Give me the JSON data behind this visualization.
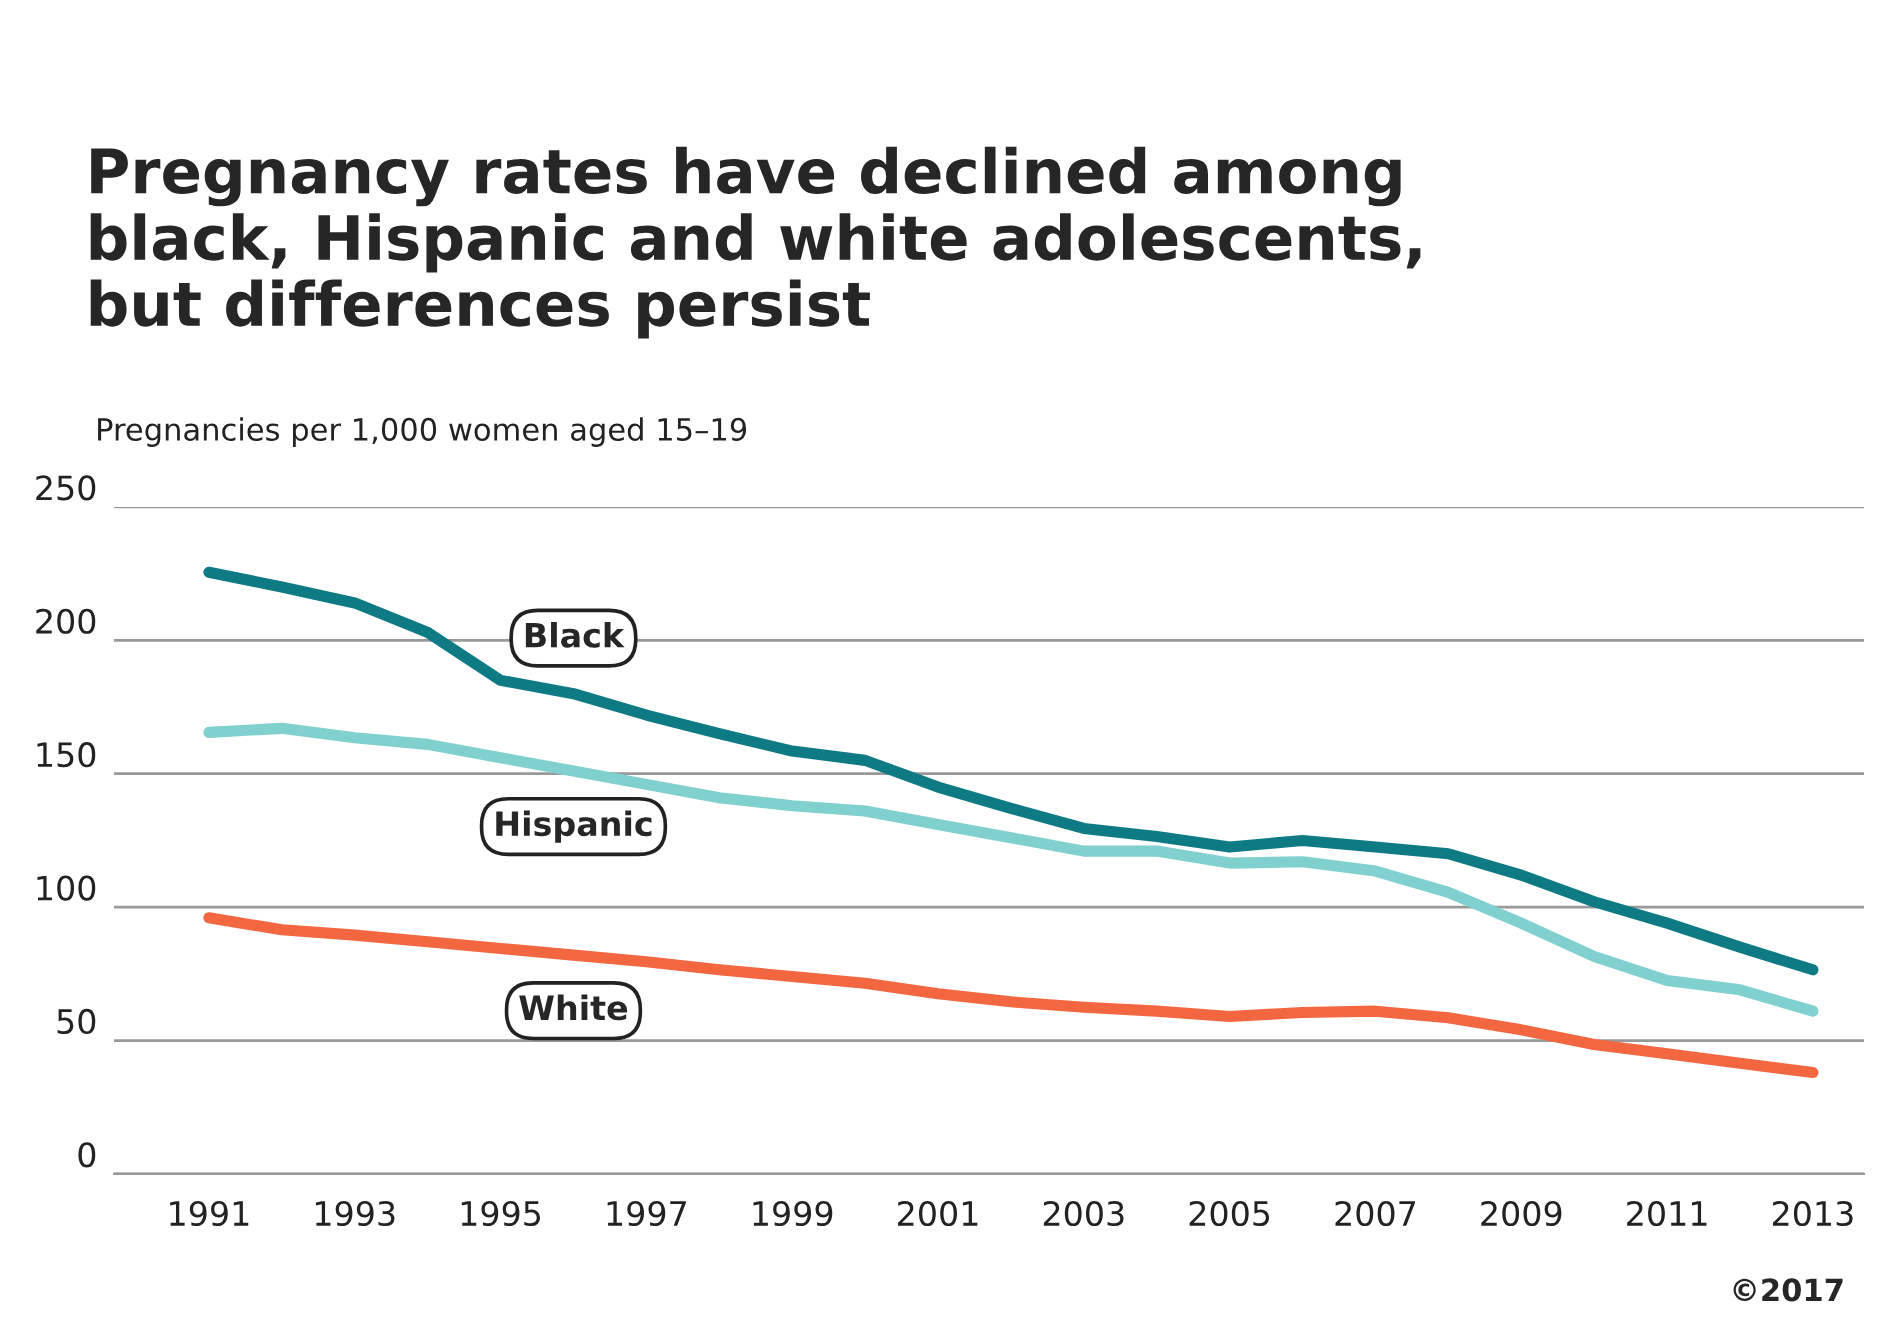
{
  "chart_data": {
    "type": "line",
    "title": "Pregnancy rates have declined among\nblack, Hispanic and white adolescents,\nbut differences persist",
    "ylabel": "Pregnancies per 1,000 women aged 15–19",
    "annotations": [
      "©2017"
    ],
    "x": [
      1991,
      1992,
      1993,
      1994,
      1995,
      1996,
      1997,
      1998,
      1999,
      2000,
      2001,
      2002,
      2003,
      2004,
      2005,
      2006,
      2007,
      2008,
      2009,
      2010,
      2011,
      2012,
      2013
    ],
    "series": [
      {
        "name": "Black",
        "color": "#0e7a83",
        "values": [
          225.5,
          220,
          214,
          203,
          185,
          180,
          172,
          165,
          158.5,
          155,
          145,
          137,
          129.5,
          126.5,
          122.5,
          125,
          122.5,
          120,
          112,
          102,
          94,
          85,
          76.5
        ]
      },
      {
        "name": "Hispanic",
        "color": "#80d0cf",
        "values": [
          165.5,
          167,
          163.5,
          161,
          156,
          151,
          146,
          141,
          138,
          136,
          131,
          126,
          121,
          121,
          116.5,
          117,
          113.5,
          105.5,
          94,
          81.5,
          72.5,
          69,
          61
        ]
      },
      {
        "name": "White",
        "color": "#f26640",
        "values": [
          96,
          91.5,
          89.5,
          87,
          84.5,
          82,
          79.5,
          76.5,
          74,
          71.5,
          67.5,
          64.5,
          62.5,
          61,
          59,
          60.5,
          61,
          58.5,
          54,
          48.5,
          45,
          41.5,
          38
        ]
      }
    ],
    "xlim": [
      1989.7,
      2013.7
    ],
    "ylim": [
      0,
      250
    ],
    "xticks": [
      1991,
      1993,
      1995,
      1997,
      1999,
      2001,
      2003,
      2005,
      2007,
      2009,
      2011,
      2013
    ],
    "yticks": [
      0,
      50,
      100,
      150,
      200,
      250
    ],
    "grid": "y",
    "legend": false,
    "marker": "none",
    "line_style": "solid"
  }
}
